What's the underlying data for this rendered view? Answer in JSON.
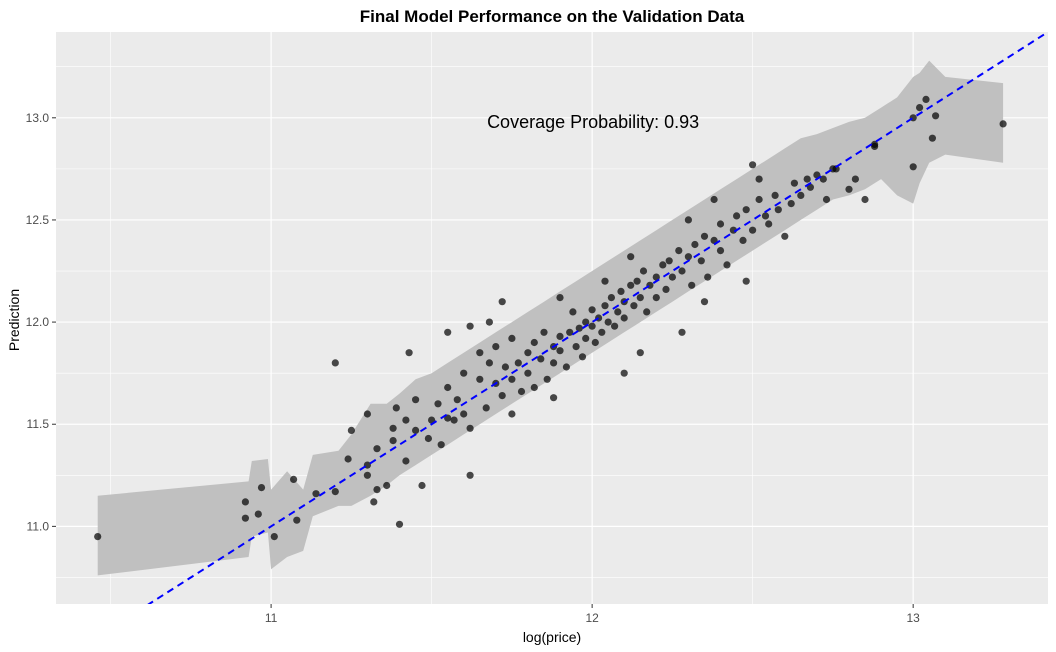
{
  "chart_data": {
    "type": "scatter",
    "title": "Final Model Performance on the Validation Data",
    "xlabel": "log(price)",
    "ylabel": "Prediction",
    "xlim": [
      10.33,
      13.42
    ],
    "ylim": [
      10.62,
      13.42
    ],
    "x_ticks": [
      11,
      12,
      13
    ],
    "y_ticks": [
      11.0,
      11.5,
      12.0,
      12.5,
      13.0
    ],
    "x_tick_labels": [
      "11",
      "12",
      "13"
    ],
    "y_tick_labels": [
      "11.0",
      "11.5",
      "12.0",
      "12.5",
      "13.0"
    ],
    "annotation": {
      "text": "Coverage Probability: 0.93",
      "x": 12.0,
      "y": 12.98
    },
    "reference_line": {
      "type": "identity",
      "slope": 1,
      "intercept": 0,
      "color": "#0000ff",
      "style": "dashed"
    },
    "interval_band": {
      "color": "#c0c0c0",
      "x": [
        10.46,
        10.93,
        10.94,
        10.99,
        11.0,
        11.05,
        11.1,
        11.13,
        11.21,
        11.25,
        11.31,
        11.36,
        11.4,
        11.45,
        11.5,
        11.55,
        11.6,
        11.65,
        11.7,
        11.75,
        11.8,
        11.85,
        11.9,
        11.95,
        12.0,
        12.05,
        12.1,
        12.15,
        12.2,
        12.25,
        12.3,
        12.35,
        12.4,
        12.45,
        12.5,
        12.55,
        12.6,
        12.65,
        12.7,
        12.75,
        12.8,
        12.85,
        12.9,
        12.95,
        13.0,
        13.02,
        13.05,
        13.1,
        13.28
      ],
      "upper": [
        11.15,
        11.22,
        11.32,
        11.33,
        11.18,
        11.27,
        11.18,
        11.35,
        11.37,
        11.45,
        11.6,
        11.6,
        11.65,
        11.72,
        11.75,
        11.8,
        11.85,
        11.9,
        11.95,
        12.0,
        12.05,
        12.1,
        12.15,
        12.2,
        12.25,
        12.3,
        12.35,
        12.4,
        12.45,
        12.5,
        12.55,
        12.6,
        12.65,
        12.7,
        12.75,
        12.8,
        12.85,
        12.9,
        12.92,
        12.95,
        12.98,
        13.0,
        13.05,
        13.1,
        13.2,
        13.22,
        13.28,
        13.2,
        13.17
      ],
      "lower": [
        10.76,
        10.85,
        10.95,
        10.97,
        10.79,
        10.85,
        10.88,
        11.05,
        11.1,
        11.1,
        11.15,
        11.2,
        11.25,
        11.3,
        11.35,
        11.4,
        11.45,
        11.5,
        11.55,
        11.6,
        11.65,
        11.7,
        11.75,
        11.8,
        11.85,
        11.9,
        11.95,
        12.0,
        12.05,
        12.1,
        12.15,
        12.2,
        12.25,
        12.3,
        12.35,
        12.4,
        12.45,
        12.5,
        12.55,
        12.6,
        12.62,
        12.65,
        12.7,
        12.62,
        12.58,
        12.68,
        12.78,
        12.82,
        12.78
      ]
    },
    "points": [
      [
        10.46,
        10.95
      ],
      [
        10.92,
        11.12
      ],
      [
        10.92,
        11.04
      ],
      [
        10.96,
        11.06
      ],
      [
        10.97,
        11.19
      ],
      [
        11.01,
        10.95
      ],
      [
        11.07,
        11.23
      ],
      [
        11.08,
        11.03
      ],
      [
        11.14,
        11.16
      ],
      [
        11.2,
        11.17
      ],
      [
        11.24,
        11.33
      ],
      [
        11.25,
        11.47
      ],
      [
        11.3,
        11.25
      ],
      [
        11.3,
        11.55
      ],
      [
        11.3,
        11.3
      ],
      [
        11.32,
        11.12
      ],
      [
        11.33,
        11.38
      ],
      [
        11.33,
        11.18
      ],
      [
        11.36,
        11.2
      ],
      [
        11.38,
        11.42
      ],
      [
        11.38,
        11.48
      ],
      [
        11.39,
        11.58
      ],
      [
        11.4,
        11.01
      ],
      [
        11.42,
        11.32
      ],
      [
        11.42,
        11.52
      ],
      [
        11.45,
        11.62
      ],
      [
        11.45,
        11.47
      ],
      [
        11.47,
        11.2
      ],
      [
        11.49,
        11.43
      ],
      [
        11.5,
        11.52
      ],
      [
        11.52,
        11.6
      ],
      [
        11.53,
        11.4
      ],
      [
        11.55,
        11.68
      ],
      [
        11.55,
        11.53
      ],
      [
        11.57,
        11.52
      ],
      [
        11.58,
        11.62
      ],
      [
        11.6,
        11.75
      ],
      [
        11.6,
        11.55
      ],
      [
        11.62,
        11.48
      ],
      [
        11.62,
        11.98
      ],
      [
        11.65,
        11.85
      ],
      [
        11.65,
        11.72
      ],
      [
        11.67,
        11.58
      ],
      [
        11.68,
        11.8
      ],
      [
        11.7,
        11.7
      ],
      [
        11.7,
        11.88
      ],
      [
        11.72,
        11.64
      ],
      [
        11.73,
        11.78
      ],
      [
        11.75,
        11.72
      ],
      [
        11.75,
        11.92
      ],
      [
        11.77,
        11.8
      ],
      [
        11.78,
        11.66
      ],
      [
        11.8,
        11.85
      ],
      [
        11.8,
        11.75
      ],
      [
        11.82,
        11.9
      ],
      [
        11.82,
        11.68
      ],
      [
        11.84,
        11.82
      ],
      [
        11.85,
        11.95
      ],
      [
        11.86,
        11.72
      ],
      [
        11.88,
        11.88
      ],
      [
        11.88,
        11.8
      ],
      [
        11.9,
        11.93
      ],
      [
        11.9,
        11.86
      ],
      [
        11.92,
        11.78
      ],
      [
        11.93,
        11.95
      ],
      [
        11.94,
        12.05
      ],
      [
        11.95,
        11.88
      ],
      [
        11.96,
        11.97
      ],
      [
        11.97,
        11.83
      ],
      [
        11.98,
        12.0
      ],
      [
        11.98,
        11.92
      ],
      [
        12.0,
        11.98
      ],
      [
        12.0,
        12.06
      ],
      [
        12.01,
        11.9
      ],
      [
        12.02,
        12.02
      ],
      [
        12.03,
        11.95
      ],
      [
        12.04,
        12.08
      ],
      [
        12.05,
        12.0
      ],
      [
        12.06,
        12.12
      ],
      [
        12.07,
        11.98
      ],
      [
        12.08,
        12.05
      ],
      [
        12.09,
        12.15
      ],
      [
        12.1,
        12.1
      ],
      [
        12.1,
        12.02
      ],
      [
        12.12,
        12.18
      ],
      [
        12.13,
        12.08
      ],
      [
        12.14,
        12.2
      ],
      [
        12.15,
        12.12
      ],
      [
        12.16,
        12.25
      ],
      [
        12.17,
        12.05
      ],
      [
        12.18,
        12.18
      ],
      [
        12.2,
        12.22
      ],
      [
        12.2,
        12.12
      ],
      [
        12.22,
        12.28
      ],
      [
        12.23,
        12.16
      ],
      [
        12.24,
        12.3
      ],
      [
        12.25,
        12.22
      ],
      [
        12.27,
        12.35
      ],
      [
        12.28,
        12.25
      ],
      [
        12.3,
        12.32
      ],
      [
        12.31,
        12.18
      ],
      [
        12.32,
        12.38
      ],
      [
        12.34,
        12.3
      ],
      [
        12.35,
        12.42
      ],
      [
        12.36,
        12.22
      ],
      [
        12.38,
        12.4
      ],
      [
        12.4,
        12.48
      ],
      [
        12.4,
        12.35
      ],
      [
        12.42,
        12.28
      ],
      [
        12.44,
        12.45
      ],
      [
        12.45,
        12.52
      ],
      [
        12.47,
        12.4
      ],
      [
        12.48,
        12.55
      ],
      [
        12.5,
        12.45
      ],
      [
        12.52,
        12.6
      ],
      [
        12.52,
        12.7
      ],
      [
        12.54,
        12.52
      ],
      [
        12.55,
        12.48
      ],
      [
        12.57,
        12.62
      ],
      [
        12.58,
        12.55
      ],
      [
        12.6,
        12.42
      ],
      [
        12.62,
        12.58
      ],
      [
        12.63,
        12.68
      ],
      [
        12.65,
        12.62
      ],
      [
        12.67,
        12.7
      ],
      [
        12.68,
        12.66
      ],
      [
        12.7,
        12.72
      ],
      [
        12.72,
        12.7
      ],
      [
        12.73,
        12.6
      ],
      [
        12.75,
        12.75
      ],
      [
        12.76,
        12.75
      ],
      [
        12.8,
        12.65
      ],
      [
        12.82,
        12.7
      ],
      [
        12.85,
        12.6
      ],
      [
        12.88,
        12.87
      ],
      [
        12.88,
        12.86
      ],
      [
        13.0,
        12.76
      ],
      [
        13.0,
        13.0
      ],
      [
        13.02,
        13.05
      ],
      [
        13.04,
        13.09
      ],
      [
        13.06,
        12.9
      ],
      [
        13.07,
        13.01
      ],
      [
        13.28,
        12.97
      ],
      [
        11.2,
        11.8
      ],
      [
        11.43,
        11.85
      ],
      [
        11.62,
        11.25
      ],
      [
        11.75,
        11.55
      ],
      [
        11.88,
        11.63
      ],
      [
        12.1,
        11.75
      ],
      [
        12.15,
        11.85
      ],
      [
        12.28,
        11.95
      ],
      [
        12.35,
        12.1
      ],
      [
        12.48,
        12.2
      ],
      [
        11.55,
        11.95
      ],
      [
        11.72,
        12.1
      ],
      [
        11.68,
        12.0
      ],
      [
        11.9,
        12.12
      ],
      [
        12.04,
        12.2
      ],
      [
        12.12,
        12.32
      ],
      [
        12.3,
        12.5
      ],
      [
        12.38,
        12.6
      ],
      [
        12.5,
        12.77
      ]
    ]
  }
}
